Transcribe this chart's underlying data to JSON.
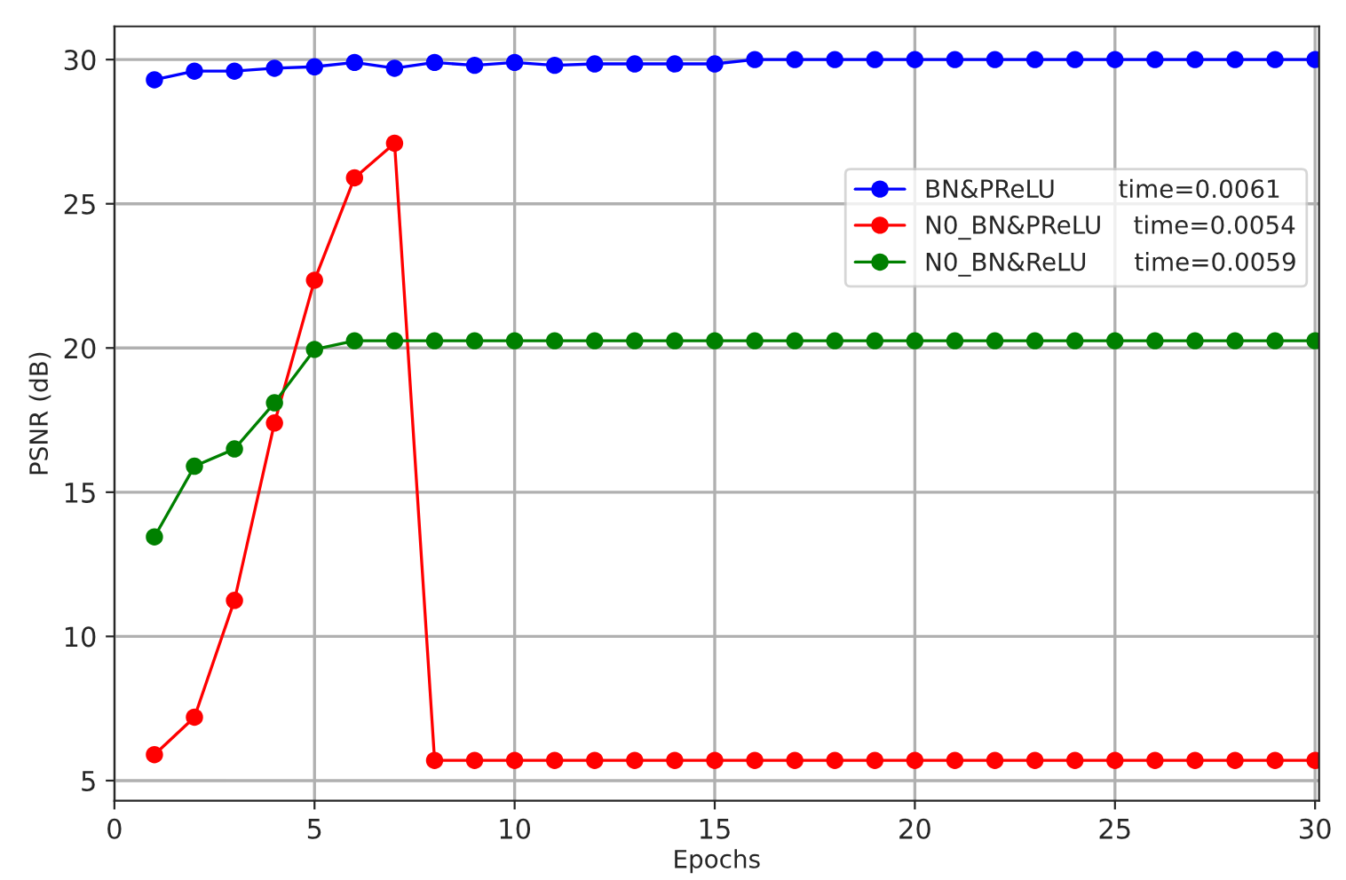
{
  "chart_data": {
    "type": "line",
    "xlabel": "Epochs",
    "ylabel": "PSNR (dB)",
    "x": [
      1,
      2,
      3,
      4,
      5,
      6,
      7,
      8,
      9,
      10,
      11,
      12,
      13,
      14,
      15,
      16,
      17,
      18,
      19,
      20,
      21,
      22,
      23,
      24,
      25,
      26,
      27,
      28,
      29,
      30
    ],
    "series": [
      {
        "name": "BN&PReLU        time=0.0061",
        "color": "#0000ff",
        "values": [
          29.3,
          29.6,
          29.6,
          29.7,
          29.75,
          29.9,
          29.7,
          29.9,
          29.8,
          29.9,
          29.8,
          29.85,
          29.85,
          29.85,
          29.85,
          30.0,
          30.0,
          30.0,
          30.0,
          30.0,
          30.0,
          30.0,
          30.0,
          30.0,
          30.0,
          30.0,
          30.0,
          30.0,
          30.0,
          30.0
        ]
      },
      {
        "name": "N0_BN&PReLU    time=0.0054",
        "color": "#ff0000",
        "values": [
          5.9,
          7.2,
          11.25,
          17.4,
          22.35,
          25.9,
          27.1,
          5.7,
          5.7,
          5.7,
          5.7,
          5.7,
          5.7,
          5.7,
          5.7,
          5.7,
          5.7,
          5.7,
          5.7,
          5.7,
          5.7,
          5.7,
          5.7,
          5.7,
          5.7,
          5.7,
          5.7,
          5.7,
          5.7,
          5.7
        ]
      },
      {
        "name": "N0_BN&ReLU      time=0.0059",
        "color": "#008000",
        "values": [
          13.45,
          15.9,
          16.5,
          18.1,
          19.95,
          20.25,
          20.25,
          20.25,
          20.25,
          20.25,
          20.25,
          20.25,
          20.25,
          20.25,
          20.25,
          20.25,
          20.25,
          20.25,
          20.25,
          20.25,
          20.25,
          20.25,
          20.25,
          20.25,
          20.25,
          20.25,
          20.25,
          20.25,
          20.25,
          20.25
        ]
      }
    ],
    "xlim": [
      0,
      30.1
    ],
    "ylim": [
      4.3,
      31.15
    ],
    "xticks": [
      0,
      5,
      10,
      15,
      20,
      25,
      30
    ],
    "yticks": [
      5,
      10,
      15,
      20,
      25,
      30
    ],
    "grid": true,
    "legend": "right",
    "marker": "circle",
    "line_style": "solid"
  }
}
